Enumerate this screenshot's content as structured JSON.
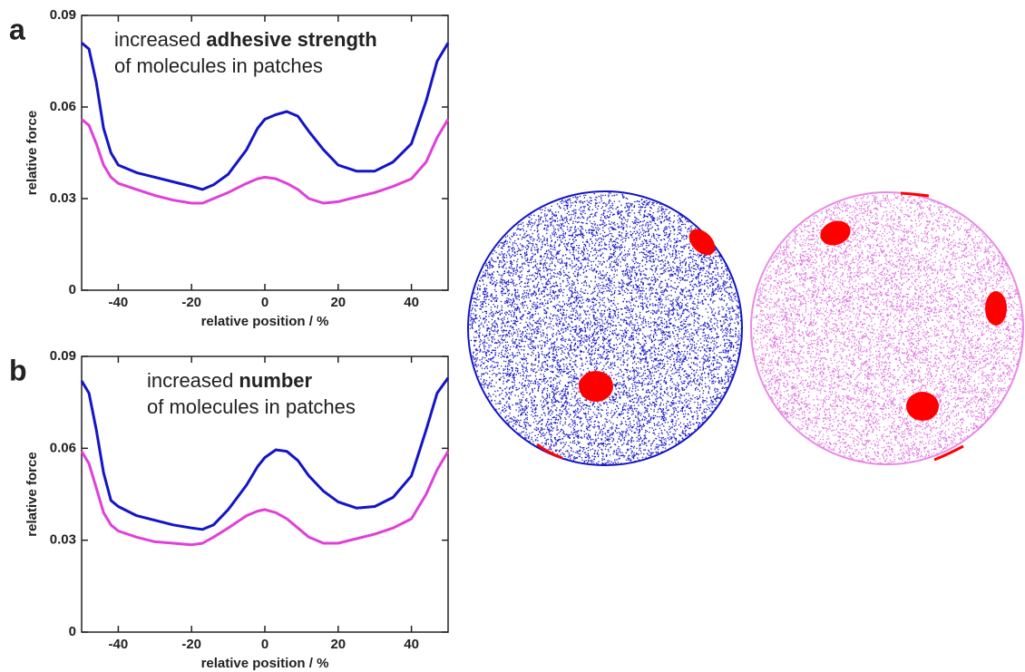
{
  "chart_data": [
    {
      "type": "line",
      "panel_label": "a",
      "annotation": {
        "text": "increased",
        "bold": "adhesive strength",
        "line2": "of molecules in patches"
      },
      "xlabel": "relative position / %",
      "ylabel": "relative force",
      "x": [
        -50,
        -48,
        -46,
        -44,
        -42,
        -40,
        -35,
        -30,
        -25,
        -20,
        -17,
        -14,
        -10,
        -5,
        -2,
        0,
        3,
        6,
        9,
        12,
        16,
        20,
        25,
        30,
        35,
        40,
        44,
        47,
        50
      ],
      "series": [
        {
          "color": "#1414c8",
          "values": [
            0.081,
            0.079,
            0.068,
            0.053,
            0.045,
            0.041,
            0.0385,
            0.037,
            0.0355,
            0.034,
            0.033,
            0.0345,
            0.038,
            0.046,
            0.053,
            0.056,
            0.0575,
            0.0585,
            0.057,
            0.052,
            0.046,
            0.041,
            0.039,
            0.039,
            0.042,
            0.048,
            0.062,
            0.075,
            0.081
          ]
        },
        {
          "color": "#e040d8",
          "values": [
            0.056,
            0.054,
            0.048,
            0.041,
            0.037,
            0.035,
            0.033,
            0.031,
            0.0295,
            0.0285,
            0.0285,
            0.03,
            0.032,
            0.035,
            0.0365,
            0.037,
            0.0365,
            0.035,
            0.033,
            0.03,
            0.0285,
            0.029,
            0.0305,
            0.032,
            0.034,
            0.0365,
            0.042,
            0.05,
            0.056
          ]
        }
      ],
      "xlim": [
        -50,
        50
      ],
      "xticks": [
        -40,
        -20,
        0,
        20,
        40
      ],
      "ylim": [
        0,
        0.09
      ],
      "yticks": [
        0,
        0.03,
        0.06,
        0.09
      ]
    },
    {
      "type": "line",
      "panel_label": "b",
      "annotation": {
        "text": "increased",
        "bold": "number",
        "line2": "of molecules in patches"
      },
      "xlabel": "relative position / %",
      "ylabel": "relative force",
      "x": [
        -50,
        -48,
        -46,
        -44,
        -42,
        -40,
        -35,
        -30,
        -25,
        -20,
        -17,
        -14,
        -10,
        -5,
        -2,
        0,
        3,
        6,
        9,
        12,
        16,
        20,
        25,
        30,
        35,
        40,
        44,
        47,
        50
      ],
      "series": [
        {
          "color": "#1414c8",
          "values": [
            0.082,
            0.078,
            0.066,
            0.052,
            0.043,
            0.041,
            0.038,
            0.0365,
            0.035,
            0.034,
            0.0335,
            0.035,
            0.04,
            0.048,
            0.054,
            0.057,
            0.0595,
            0.059,
            0.056,
            0.051,
            0.046,
            0.0425,
            0.0405,
            0.041,
            0.044,
            0.051,
            0.066,
            0.078,
            0.083
          ]
        },
        {
          "color": "#e040d8",
          "values": [
            0.059,
            0.055,
            0.047,
            0.039,
            0.035,
            0.033,
            0.031,
            0.0295,
            0.029,
            0.0285,
            0.029,
            0.031,
            0.034,
            0.038,
            0.0395,
            0.04,
            0.039,
            0.037,
            0.034,
            0.031,
            0.029,
            0.029,
            0.0305,
            0.032,
            0.034,
            0.037,
            0.045,
            0.053,
            0.059
          ]
        }
      ],
      "xlim": [
        -50,
        50
      ],
      "xticks": [
        -40,
        -20,
        0,
        20,
        40
      ],
      "ylim": [
        0,
        0.09
      ],
      "yticks": [
        0,
        0.03,
        0.06,
        0.09
      ]
    }
  ]
}
